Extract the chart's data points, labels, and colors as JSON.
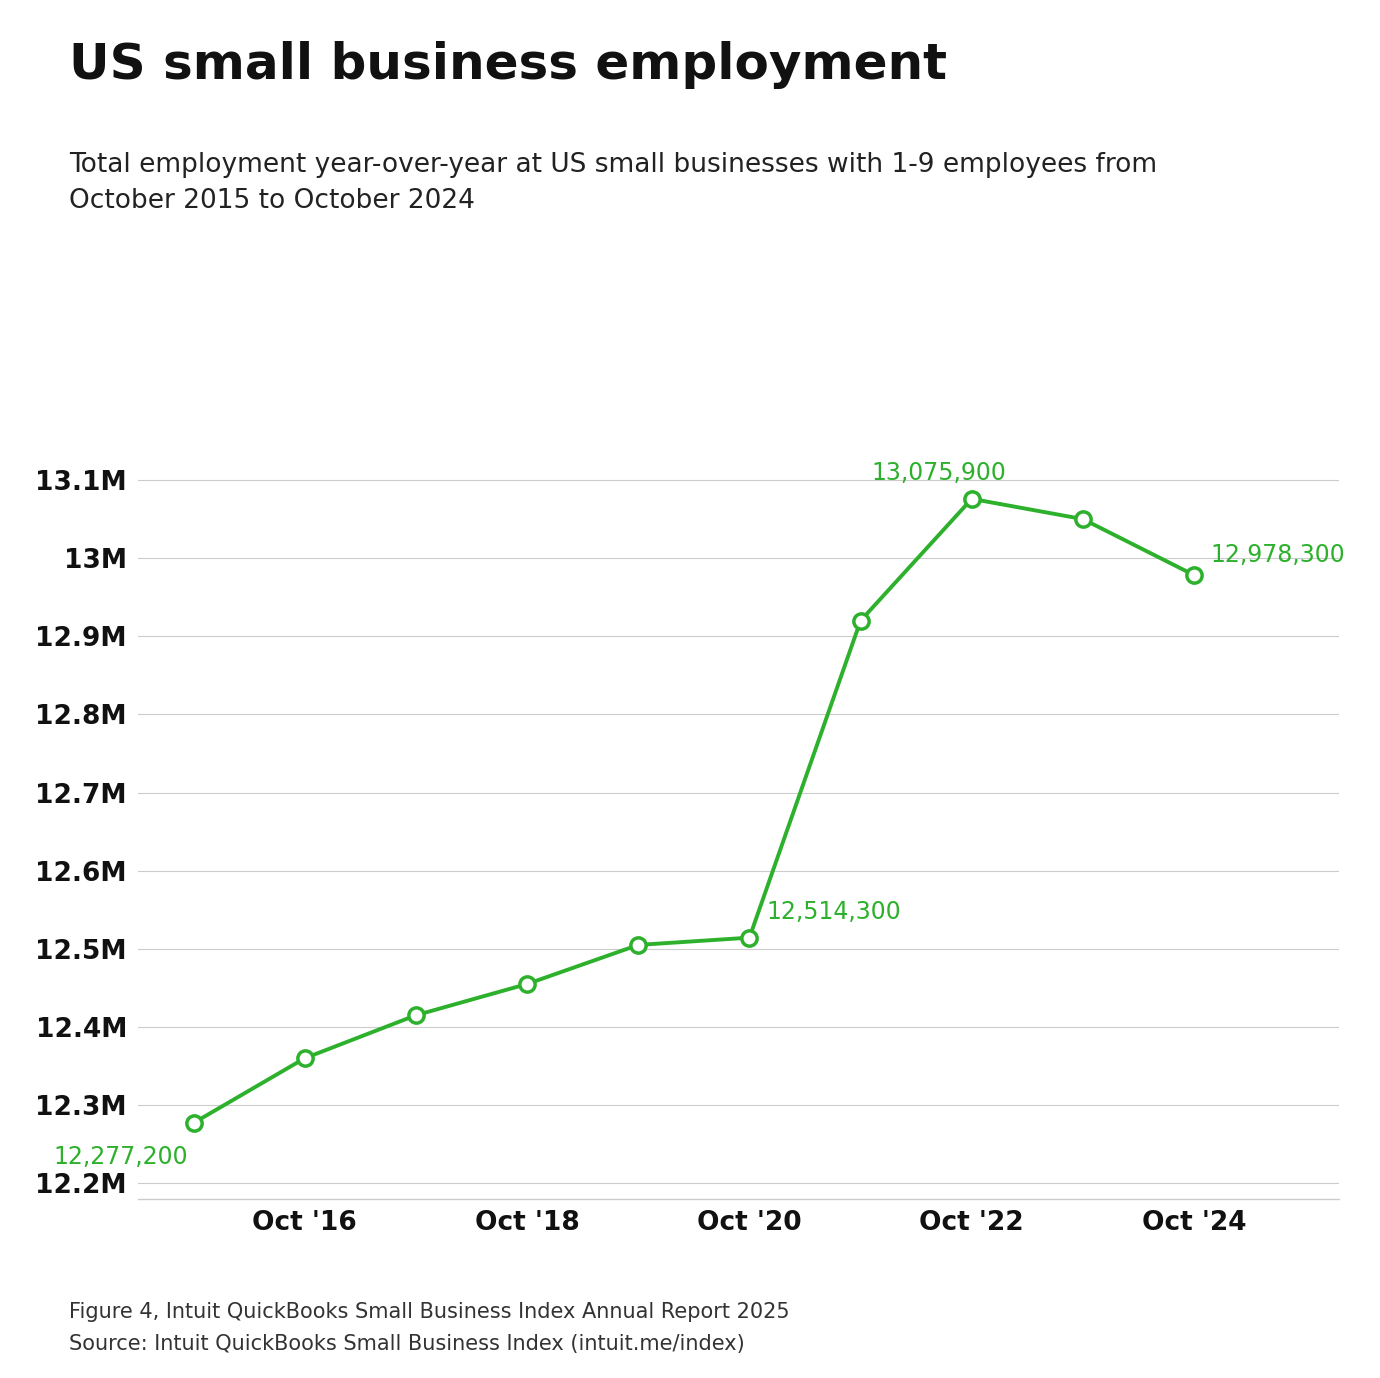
{
  "title": "US small business employment",
  "subtitle": "Total employment year-over-year at US small businesses with 1-9 employees from\nOctober 2015 to October 2024",
  "footnote1": "Figure 4, Intuit QuickBooks Small Business Index Annual Report 2025",
  "footnote2": "Source: Intuit QuickBooks Small Business Index (intuit.me/index)",
  "x_years": [
    2015,
    2016,
    2017,
    2018,
    2019,
    2020,
    2021,
    2022,
    2023,
    2024
  ],
  "y_values": [
    12277200,
    12360000,
    12415000,
    12455000,
    12505000,
    12514300,
    12920000,
    13075900,
    13050000,
    12978300
  ],
  "line_color": "#2db12d",
  "marker_face_color": "#ffffff",
  "marker_edge_color": "#2db12d",
  "background_color": "#ffffff",
  "grid_color": "#cccccc",
  "label_points": [
    0,
    5,
    7,
    9
  ],
  "label_texts": [
    "12,277,200",
    "12,514,300",
    "13,075,900",
    "12,978,300"
  ],
  "ytick_values": [
    12200000,
    12300000,
    12400000,
    12500000,
    12600000,
    12700000,
    12800000,
    12900000,
    13000000,
    13100000
  ],
  "ytick_labels": [
    "12.2M",
    "12.3M",
    "12.4M",
    "12.5M",
    "12.6M",
    "12.7M",
    "12.8M",
    "12.9M",
    "13M",
    "13.1M"
  ],
  "xtick_years": [
    2016,
    2018,
    2020,
    2022,
    2024
  ],
  "xtick_labels": [
    "Oct '16",
    "Oct '18",
    "Oct '20",
    "Oct '22",
    "Oct '24"
  ],
  "xlim": [
    2014.5,
    2025.3
  ],
  "ylim": [
    12180000,
    13150000
  ],
  "title_fontsize": 36,
  "subtitle_fontsize": 19,
  "tick_fontsize": 19,
  "annotation_fontsize": 17,
  "footnote_fontsize": 15
}
